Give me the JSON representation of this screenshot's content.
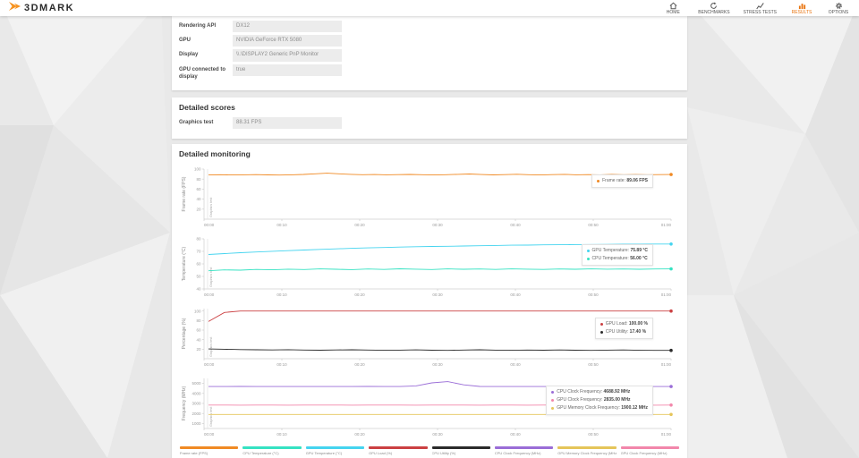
{
  "topbar": {
    "logo_text": "3DMARK",
    "accent_color": "#e8720c",
    "nav": [
      {
        "label": "HOME",
        "icon": "home-icon",
        "active": false
      },
      {
        "label": "BENCHMARKS",
        "icon": "benchmarks-icon",
        "active": false
      },
      {
        "label": "STRESS TESTS",
        "icon": "stress-tests-icon",
        "active": false
      },
      {
        "label": "RESULTS",
        "icon": "results-icon",
        "active": true
      },
      {
        "label": "OPTIONS",
        "icon": "options-icon",
        "active": false
      }
    ]
  },
  "system_info": {
    "rows": [
      {
        "label": "Rendering API",
        "value": "DX12"
      },
      {
        "label": "GPU",
        "value": "NVIDIA GeForce RTX 5080"
      },
      {
        "label": "Display",
        "value": "\\\\.\\DISPLAY2 Generic PnP Monitor"
      },
      {
        "label": "GPU connected to display",
        "value": "true"
      }
    ]
  },
  "detailed_scores": {
    "title": "Detailed scores",
    "rows": [
      {
        "label": "Graphics test",
        "value": "88.31 FPS"
      }
    ]
  },
  "monitoring": {
    "title": "Detailed monitoring",
    "region_label": "Graphics test"
  },
  "chart_data": [
    {
      "type": "line",
      "name": "frame-rate-chart",
      "ylabel": "Frame rate (FPS)",
      "ylim": [
        0,
        100
      ],
      "yticks": [
        20,
        40,
        60,
        80,
        100
      ],
      "xticks": [
        "00:00",
        "00:10",
        "00:20",
        "00:30",
        "00:40",
        "00:50",
        "01:00"
      ],
      "region_label": "Graphics test",
      "series": [
        {
          "name": "Frame rate",
          "legend_value": "89.06 FPS",
          "color": "#f08a24",
          "values": [
            88.5,
            88.8,
            88.2,
            88.6,
            89.0,
            88.4,
            88.0,
            88.5,
            89.2,
            90.5,
            91.8,
            90.6,
            89.4,
            88.8,
            89.1,
            88.6,
            88.9,
            89.3,
            88.7,
            88.2,
            88.8,
            89.5,
            90.2,
            89.1,
            88.4,
            88.9,
            89.6,
            88.8,
            88.3,
            88.9,
            89.4,
            88.6,
            89.0,
            88.5,
            89.2,
            88.8,
            89.1,
            88.7,
            89.0,
            89.06
          ]
        }
      ]
    },
    {
      "type": "line",
      "name": "temperature-chart",
      "ylabel": "Temperature (°C)",
      "ylim": [
        40,
        80
      ],
      "yticks": [
        40,
        50,
        60,
        70,
        80
      ],
      "xticks": [
        "00:00",
        "00:10",
        "00:20",
        "00:30",
        "00:40",
        "00:50",
        "01:00"
      ],
      "region_label": "Graphics test",
      "series": [
        {
          "name": "GPU Temperature",
          "legend_value": "75.89 °C",
          "color": "#45d4ef",
          "values": [
            67.5,
            68.2,
            68.9,
            69.5,
            70.1,
            70.6,
            71.1,
            71.6,
            72.0,
            72.4,
            72.8,
            73.1,
            73.4,
            73.7,
            73.9,
            74.1,
            74.3,
            74.5,
            74.7,
            74.9,
            75.0,
            75.2,
            75.3,
            75.4,
            75.5,
            75.6,
            75.7,
            75.8,
            75.85,
            75.89
          ]
        },
        {
          "name": "CPU Temperature",
          "legend_value": "56.00 °C",
          "color": "#35e2c2",
          "values": [
            54.5,
            55.2,
            55.0,
            55.6,
            55.3,
            55.8,
            55.5,
            56.0,
            55.7,
            55.4,
            55.9,
            55.6,
            56.1,
            55.8,
            55.5,
            56.0,
            55.7,
            55.9,
            55.6,
            56.0,
            55.8,
            55.6,
            55.9,
            55.7,
            56.0,
            55.8,
            55.9,
            55.7,
            55.9,
            56.0
          ]
        }
      ]
    },
    {
      "type": "line",
      "name": "percentage-chart",
      "ylabel": "Percentage (%)",
      "ylim": [
        0,
        105
      ],
      "yticks": [
        20,
        40,
        60,
        80,
        100
      ],
      "xticks": [
        "00:00",
        "00:10",
        "00:20",
        "00:30",
        "00:40",
        "00:50",
        "01:00"
      ],
      "region_label": "Graphics test",
      "series": [
        {
          "name": "GPU Load",
          "legend_value": "100.00 %",
          "color": "#cb4042",
          "values": [
            78,
            97,
            100,
            100,
            100,
            100,
            100,
            100,
            100,
            100,
            100,
            100,
            100,
            100,
            100,
            100,
            100,
            100,
            100,
            100,
            100,
            100,
            100,
            100,
            100,
            100,
            100,
            100,
            100,
            100
          ]
        },
        {
          "name": "CPU Utility",
          "legend_value": "17.40 %",
          "color": "#2b2b2b",
          "values": [
            20.5,
            19.8,
            19.2,
            18.8,
            18.4,
            18.9,
            18.2,
            17.8,
            18.3,
            18.8,
            18.1,
            17.6,
            18.0,
            18.5,
            17.9,
            17.5,
            18.2,
            18.7,
            18.0,
            17.6,
            18.1,
            17.8,
            18.4,
            17.9,
            17.5,
            18.0,
            18.3,
            17.7,
            17.5,
            17.4
          ]
        }
      ]
    },
    {
      "type": "line",
      "name": "frequency-chart",
      "ylabel": "Frequency (MHz)",
      "ylim": [
        500,
        5500
      ],
      "yticks": [
        1000,
        2000,
        3000,
        4000,
        5000
      ],
      "xticks": [
        "00:00",
        "00:10",
        "00:20",
        "00:30",
        "00:40",
        "00:50",
        "01:00"
      ],
      "region_label": "Graphics test",
      "series": [
        {
          "name": "CPU Clock Frequency",
          "legend_value": "4688.92 MHz",
          "color": "#9a6dd7",
          "values": [
            4690,
            4685,
            4692,
            4688,
            4690,
            4686,
            4691,
            4689,
            4690,
            4687,
            4692,
            4690,
            4688,
            4750,
            5050,
            5180,
            4860,
            4700,
            4690,
            4688,
            4691,
            4689,
            4690,
            4687,
            4690,
            4692,
            4688,
            4690,
            4689,
            4689
          ]
        },
        {
          "name": "GPU Clock Frequency",
          "legend_value": "2835.00 MHz",
          "color": "#f287ab",
          "values": [
            2835,
            2836,
            2834,
            2835,
            2835,
            2834,
            2836,
            2835,
            2835,
            2834,
            2835,
            2836,
            2835,
            2834,
            2835,
            2835,
            2836,
            2834,
            2835,
            2835,
            2834,
            2836,
            2835,
            2835,
            2834,
            2835,
            2836,
            2835,
            2834,
            2835
          ]
        },
        {
          "name": "GPU Memory Clock Frequency",
          "legend_value": "1900.12 MHz",
          "color": "#e5c55a",
          "values": [
            1900,
            1900,
            1901,
            1900,
            1900,
            1899,
            1900,
            1900,
            1901,
            1900,
            1900,
            1900,
            1899,
            1900,
            1900,
            1901,
            1900,
            1900,
            1900,
            1899,
            1900,
            1900,
            1901,
            1900,
            1900,
            1900,
            1899,
            1900,
            1900,
            1900
          ]
        }
      ]
    }
  ],
  "bottom_legend": [
    {
      "label": "Frame rate (FPS)",
      "color": "#f08a24"
    },
    {
      "label": "CPU Temperature (°C)",
      "color": "#35e2c2"
    },
    {
      "label": "GPU Temperature (°C)",
      "color": "#45d4ef"
    },
    {
      "label": "GPU Load (%)",
      "color": "#cb4042"
    },
    {
      "label": "CPU Utility (%)",
      "color": "#2b2b2b"
    },
    {
      "label": "CPU Clock Frequency (MHz)",
      "color": "#9a6dd7"
    },
    {
      "label": "GPU Memory Clock Frequency (MHz)",
      "color": "#e5c55a"
    },
    {
      "label": "GPU Clock Frequency (MHz)",
      "color": "#f287ab"
    }
  ]
}
